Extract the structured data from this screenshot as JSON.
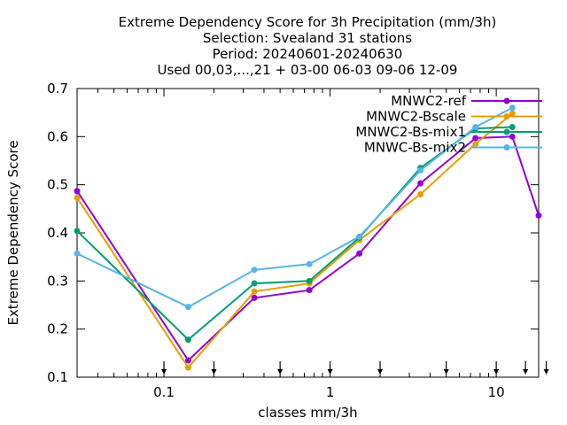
{
  "chart_data": {
    "type": "line",
    "title_lines": [
      "Extreme Dependency Score  for 3h Precipitation (mm/3h)",
      "Selection: Svealand     31 stations",
      "Period: 20240601-20240630",
      "Used 00,03,...,21 + 03-00 06-03 09-06 12-09"
    ],
    "xlabel": "classes mm/3h",
    "ylabel": "Extreme Dependency Score",
    "xscale": "log",
    "xlim": [
      0.03,
      18
    ],
    "ylim": [
      0.1,
      0.7
    ],
    "yticks": [
      0.1,
      0.2,
      0.3,
      0.4,
      0.5,
      0.6,
      0.7
    ],
    "ytick_labels": [
      "0.1",
      "0.2",
      "0.3",
      "0.4",
      "0.5",
      "0.6",
      "0.7"
    ],
    "xticks": [
      0.1,
      1,
      10
    ],
    "xtick_labels": [
      "0.1",
      "1",
      "10"
    ],
    "class_thresholds": [
      0.1,
      0.2,
      0.5,
      1,
      2,
      5,
      10,
      15,
      20
    ],
    "legend_position": "top-right",
    "series": [
      {
        "name": "MNWC2-ref",
        "color": "#9400d3",
        "x": [
          0.03,
          0.14,
          0.35,
          0.75,
          1.5,
          3.5,
          7.5,
          12.5,
          18
        ],
        "values": [
          0.487,
          0.135,
          0.265,
          0.281,
          0.357,
          0.503,
          0.597,
          0.6,
          0.436
        ]
      },
      {
        "name": "MNWC2-Bscale",
        "color": "#e69f00",
        "x": [
          0.03,
          0.14,
          0.35,
          0.75,
          1.5,
          3.5,
          7.5,
          12.5
        ],
        "values": [
          0.473,
          0.12,
          0.278,
          0.295,
          0.385,
          0.48,
          0.585,
          0.648
        ]
      },
      {
        "name": "MNWC2-Bs-mix1",
        "color": "#009e73",
        "x": [
          0.03,
          0.14,
          0.35,
          0.75,
          1.5,
          3.5,
          7.5,
          12.5
        ],
        "values": [
          0.404,
          0.178,
          0.295,
          0.3,
          0.39,
          0.535,
          0.617,
          0.62
        ]
      },
      {
        "name": "MNWC-Bs-mix2",
        "color": "#56b4e9",
        "x": [
          0.03,
          0.14,
          0.35,
          0.75,
          1.5,
          3.5,
          7.5,
          12.5
        ],
        "values": [
          0.357,
          0.246,
          0.323,
          0.335,
          0.392,
          0.53,
          0.62,
          0.66
        ]
      }
    ]
  }
}
